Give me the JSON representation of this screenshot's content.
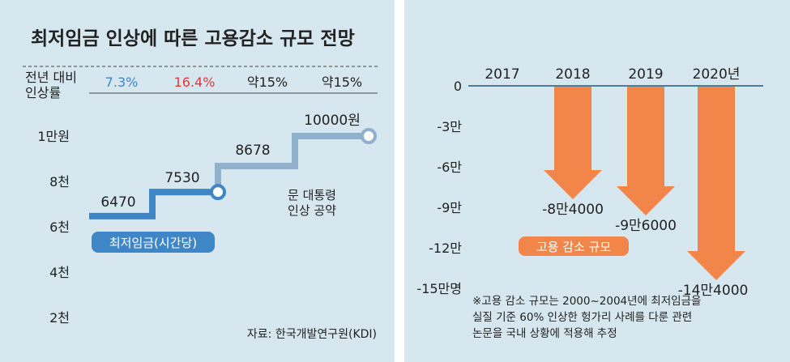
{
  "title": "최저임금 인상에 따른 고용감소 규모 전망",
  "colors": {
    "background": "#d6e7ef",
    "wage_line": "#3f86c6",
    "pledge_line": "#8fb1cb",
    "arrow": "#f2854a",
    "red": "#e03838",
    "blue": "#3f86c6",
    "text": "#222222"
  },
  "chart_data": [
    {
      "type": "line",
      "title": "",
      "table": {
        "label_line1": "전년 대비",
        "label_line2": "인상률",
        "rates": [
          {
            "text": "7.3%",
            "color": "blue"
          },
          {
            "text": "16.4%",
            "color": "red"
          },
          {
            "text": "약15%",
            "color": "text"
          },
          {
            "text": "약15%",
            "color": "text"
          }
        ]
      },
      "y_ticks": [
        {
          "value": 10000,
          "label": "1만원"
        },
        {
          "value": 8000,
          "label": "8천"
        },
        {
          "value": 6000,
          "label": "6천"
        },
        {
          "value": 4000,
          "label": "4천"
        },
        {
          "value": 2000,
          "label": "2천"
        }
      ],
      "ylim": [
        2000,
        10000
      ],
      "series": [
        {
          "name": "최저임금(시간당)",
          "values": [
            {
              "year": 2017,
              "value": 6470,
              "label": "6470"
            },
            {
              "year": 2018,
              "value": 7530,
              "label": "7530"
            }
          ]
        },
        {
          "name": "문 대통령 인상 공약",
          "values": [
            {
              "year": 2018,
              "value": 7530,
              "label": ""
            },
            {
              "year": 2019,
              "value": 8678,
              "label": "8678"
            },
            {
              "year": 2020,
              "value": 10000,
              "label": "10000원"
            }
          ]
        }
      ],
      "legend_wage": "최저임금(시간당)",
      "annotation_pledge_line1": "문 대통령",
      "annotation_pledge_line2": "인상 공약",
      "source": "자료: 한국개발연구원(KDI)"
    },
    {
      "type": "bar",
      "categories": [
        "2017",
        "2018",
        "2019",
        "2020년"
      ],
      "values": [
        0,
        -84000,
        -96000,
        -144000
      ],
      "value_labels": [
        "",
        "-8만4000",
        "-9만6000",
        "-14만4000"
      ],
      "y_ticks": [
        {
          "value": 0,
          "label": "0"
        },
        {
          "value": -30000,
          "label": "-3만"
        },
        {
          "value": -60000,
          "label": "-6만"
        },
        {
          "value": -90000,
          "label": "-9만"
        },
        {
          "value": -120000,
          "label": "-12만"
        },
        {
          "value": -150000,
          "label": "-15만명"
        }
      ],
      "ylim": [
        -150000,
        0
      ],
      "legend": "고용 감소 규모",
      "footnote_lines": [
        "※고용 감소 규모는 2000~2004년에 최저임금을",
        "실질 기준 60% 인상한 헝가리 사례를 다룬 관련",
        "논문을 국내 상황에 적용해 추정"
      ]
    }
  ]
}
